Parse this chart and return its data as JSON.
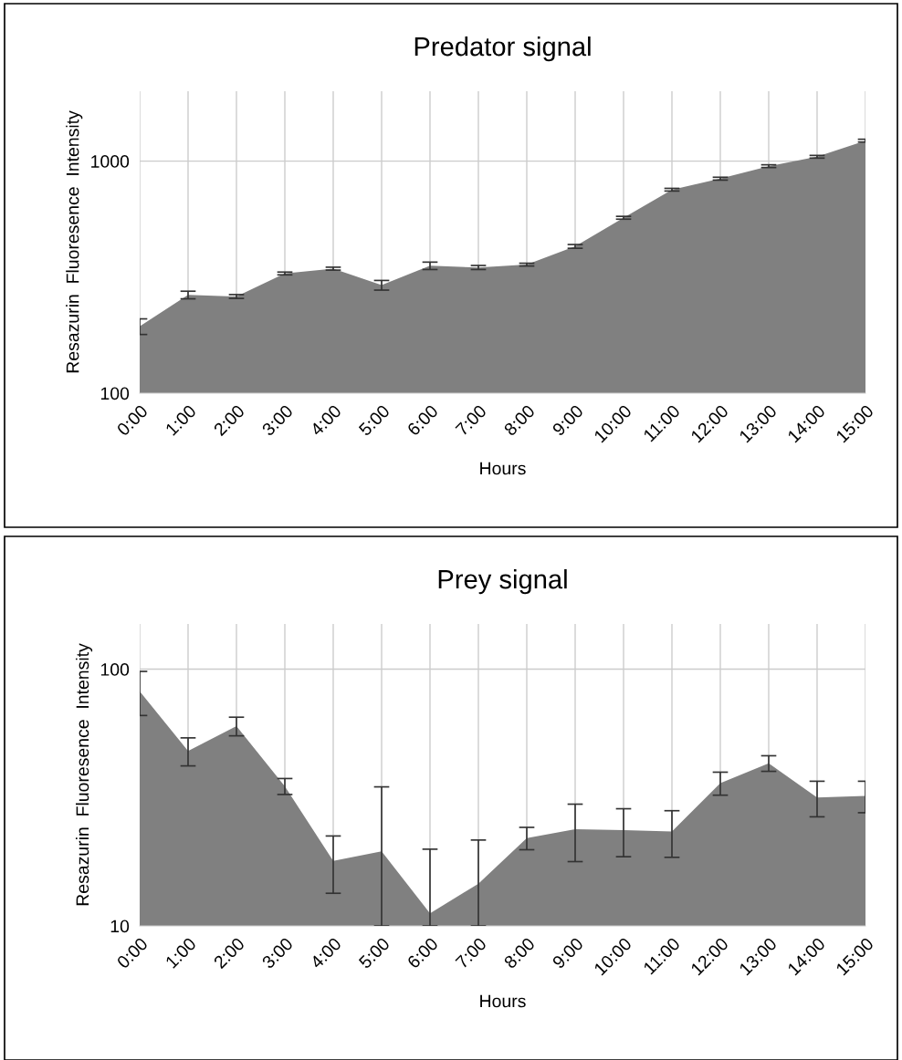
{
  "chart_data": [
    {
      "type": "area",
      "title": "Predator signal",
      "xlabel": "Hours",
      "ylabel": "Resazurin  Fluoresence  Intensity",
      "categories": [
        "0:00",
        "1:00",
        "2:00",
        "3:00",
        "4:00",
        "5:00",
        "6:00",
        "7:00",
        "8:00",
        "9:00",
        "10:00",
        "11:00",
        "12:00",
        "13:00",
        "14:00",
        "15:00"
      ],
      "series": [
        {
          "color": "#808080",
          "values": [
            194,
            265,
            261,
            328,
            344,
            292,
            354,
            348,
            358,
            429,
            570,
            753,
            840,
            951,
            1044,
            1225
          ],
          "errors": [
            15,
            10,
            5,
            4.5,
            5,
            14,
            13,
            7,
            5,
            8,
            8,
            10,
            12,
            13,
            14,
            17
          ]
        }
      ],
      "log": true,
      "ylim": [
        100,
        2000
      ],
      "yticks": [
        100,
        1000
      ],
      "grid": true,
      "legend": false
    },
    {
      "type": "area",
      "title": "Prey signal",
      "xlabel": "Hours",
      "ylabel": "Resazurin  Fluoresence  Intensity",
      "categories": [
        "0:00",
        "1:00",
        "2:00",
        "3:00",
        "4:00",
        "5:00",
        "6:00",
        "7:00",
        "8:00",
        "9:00",
        "10:00",
        "11:00",
        "12:00",
        "13:00",
        "14:00",
        "15:00"
      ],
      "series": [
        {
          "color": "#808080",
          "values": [
            82,
            48,
            60,
            35,
            17.9,
            19.5,
            11.2,
            14.6,
            22,
            23.8,
            23.6,
            23.3,
            36,
            43,
            31.6,
            32.1
          ],
          "errors": [
            16,
            6,
            5,
            2.5,
            4.5,
            [
              10,
              34.8
            ],
            [
              10,
              19.9
            ],
            [
              10,
              21.6
            ],
            2.2,
            6,
            5,
            4.8,
            3.7,
            3,
            5,
            4.5
          ]
        }
      ],
      "log": true,
      "ylim": [
        10,
        150
      ],
      "yticks": [
        10,
        100
      ],
      "grid": true,
      "legend": false
    }
  ]
}
